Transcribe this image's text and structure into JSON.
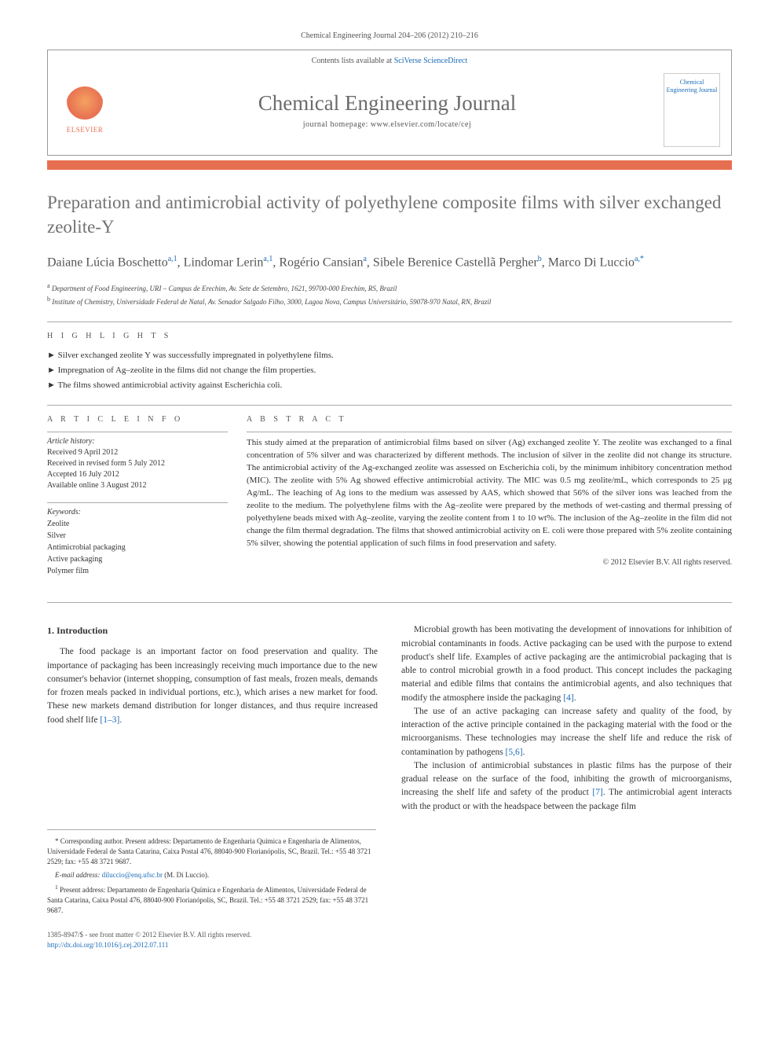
{
  "header": {
    "citation": "Chemical Engineering Journal 204–206 (2012) 210–216",
    "contents_available": "Contents lists available at ",
    "sciencedirect": "SciVerse ScienceDirect",
    "journal_name": "Chemical Engineering Journal",
    "homepage_label": "journal homepage: www.elsevier.com/locate/cej",
    "publisher": "ELSEVIER",
    "cover_text": "Chemical Engineering Journal"
  },
  "article": {
    "title": "Preparation and antimicrobial activity of polyethylene composite films with silver exchanged zeolite-Y",
    "authors_html": "Daiane Lúcia Boschetto",
    "a1": "a,1",
    "author2": ", Lindomar Lerin",
    "a1b": "a,1",
    "author3": ", Rogério Cansian",
    "supa": "a",
    "author4": ", Sibele Berenice Castellã Pergher",
    "supb": "b",
    "author5": ", Marco Di Luccio",
    "supastar": "a,*",
    "affiliations": {
      "a": "Department of Food Engineering, URI – Campus de Erechim, Av. Sete de Setembro, 1621, 99700-000 Erechim, RS, Brazil",
      "b": "Institute of Chemistry, Universidade Federal de Natal, Av. Senador Salgado Filho, 3000, Lagoa Nova, Campus Universitário, 59078-970 Natal, RN, Brazil"
    }
  },
  "highlights": {
    "label": "H I G H L I G H T S",
    "items": [
      "Silver exchanged zeolite Y was successfully impregnated in polyethylene films.",
      "Impregnation of Ag–zeolite in the films did not change the film properties.",
      "The films showed antimicrobial activity against Escherichia coli."
    ]
  },
  "info": {
    "label": "A R T I C L E   I N F O",
    "history_label": "Article history:",
    "history": [
      "Received 9 April 2012",
      "Received in revised form 5 July 2012",
      "Accepted 16 July 2012",
      "Available online 3 August 2012"
    ],
    "keywords_label": "Keywords:",
    "keywords": [
      "Zeolite",
      "Silver",
      "Antimicrobial packaging",
      "Active packaging",
      "Polymer film"
    ]
  },
  "abstract": {
    "label": "A B S T R A C T",
    "text": "This study aimed at the preparation of antimicrobial films based on silver (Ag) exchanged zeolite Y. The zeolite was exchanged to a final concentration of 5% silver and was characterized by different methods. The inclusion of silver in the zeolite did not change its structure. The antimicrobial activity of the Ag-exchanged zeolite was assessed on Escherichia coli, by the minimum inhibitory concentration method (MIC). The zeolite with 5% Ag showed effective antimicrobial activity. The MIC was 0.5 mg zeolite/mL, which corresponds to 25 μg Ag/mL. The leaching of Ag ions to the medium was assessed by AAS, which showed that 56% of the silver ions was leached from the zeolite to the medium. The polyethylene films with the Ag–zeolite were prepared by the methods of wet-casting and thermal pressing of polyethylene beads mixed with Ag–zeolite, varying the zeolite content from 1 to 10 wt%. The inclusion of the Ag–zeolite in the film did not change the film thermal degradation. The films that showed antimicrobial activity on E. coli were those prepared with 5% zeolite containing 5% silver, showing the potential application of such films in food preservation and safety.",
    "copyright": "© 2012 Elsevier B.V. All rights reserved."
  },
  "body": {
    "heading": "1. Introduction",
    "left_p1": "The food package is an important factor on food preservation and quality. The importance of packaging has been increasingly receiving much importance due to the new consumer's behavior (internet shopping, consumption of fast meals, frozen meals, demands for frozen meals packed in individual portions, etc.), which arises a new market for food. These new markets demand distribution for longer distances, and thus require increased food shelf life ",
    "left_ref1": "[1–3]",
    "left_p1_end": ".",
    "right_p1": "Microbial growth has been motivating the development of innovations for inhibition of microbial contaminants in foods. Active packaging can be used with the purpose to extend product's shelf life. Examples of active packaging are the antimicrobial packaging that is able to control microbial growth in a food product. This concept includes the packaging material and edible films that contains the antimicrobial agents, and also techniques that modify the atmosphere inside the packaging ",
    "right_ref1": "[4]",
    "right_p1_end": ".",
    "right_p2": "The use of an active packaging can increase safety and quality of the food, by interaction of the active principle contained in the packaging material with the food or the microorganisms. These technologies may increase the shelf life and reduce the risk of contamination by pathogens ",
    "right_ref2": "[5,6]",
    "right_p2_end": ".",
    "right_p3": "The inclusion of antimicrobial substances in plastic films has the purpose of their gradual release on the surface of the food, inhibiting the growth of microorganisms, increasing the shelf life and safety of the product ",
    "right_ref3": "[7]",
    "right_p3_end": ". The antimicrobial agent interacts with the product or with the headspace between the package film"
  },
  "footnotes": {
    "corr": "* Corresponding author. Present address: Departamento de Engenharia Química e Engenharia de Alimentos, Universidade Federal de Santa Catarina, Caixa Postal 476, 88040-900 Florianópolis, SC, Brazil. Tel.: +55 48 3721 2529; fax: +55 48 3721 9687.",
    "email_label": "E-mail address: ",
    "email": "diluccio@enq.ufsc.br",
    "email_who": " (M. Di Luccio).",
    "present1": "Present address: Departamento de Engenharia Química e Engenharia de Alimentos, Universidade Federal de Santa Catarina, Caixa Postal 476, 88040-900 Florianópolis, SC, Brazil. Tel.: +55 48 3721 2529; fax: +55 48 3721 9687.",
    "present1_sup": "1"
  },
  "bottom": {
    "line1": "1385-8947/$ - see front matter © 2012 Elsevier B.V. All rights reserved.",
    "doi": "http://dx.doi.org/10.1016/j.cej.2012.07.111"
  },
  "colors": {
    "orange": "#e76f51",
    "link": "#1a6bb8",
    "grey_text": "#727272"
  }
}
